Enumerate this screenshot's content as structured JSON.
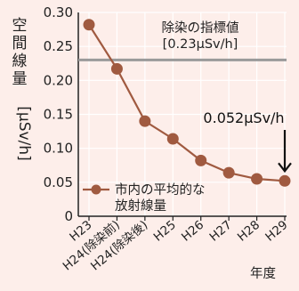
{
  "chart_data": {
    "type": "line",
    "categories": [
      "H23",
      "H24(除染前)",
      "H24(除染後)",
      "H25",
      "H26",
      "H27",
      "H28",
      "H29"
    ],
    "series": [
      {
        "name": "市内の平均的な放射線量",
        "values": [
          0.282,
          0.217,
          0.14,
          0.114,
          0.082,
          0.064,
          0.055,
          0.052
        ]
      }
    ],
    "ylabel": "空間線量 [μSv/h]",
    "xlabel": "年度",
    "ylim": [
      0,
      0.3
    ],
    "yticks": [
      "0",
      "0.05",
      "0.10",
      "0.15",
      "0.20",
      "0.25",
      "0.30"
    ],
    "reference_line": {
      "value": 0.23,
      "label_line1": "除染の指標値",
      "label_line2": "[0.23μSv/h]"
    },
    "annotation": {
      "text": "0.052μSv/h",
      "target_index": 7
    },
    "legend_line1": "市内の平均的な",
    "legend_line2": "放射線量",
    "grid": true,
    "colors": {
      "series": "#a05a40",
      "reference": "#9a9a9a",
      "grid": "#ffffff",
      "background": "#fdeeea"
    }
  }
}
